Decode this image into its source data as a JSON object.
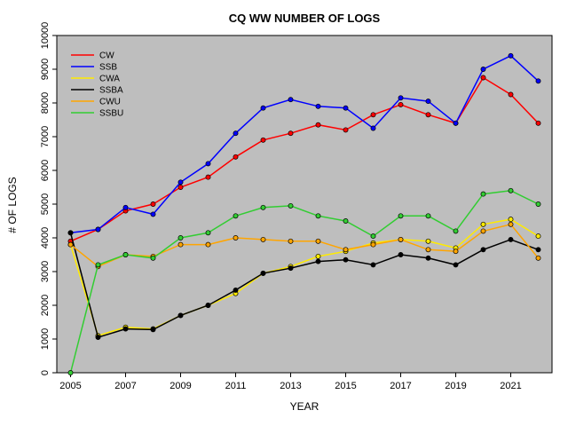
{
  "chart_data": {
    "type": "line",
    "title": "CQ WW NUMBER OF LOGS",
    "xlabel": "YEAR",
    "ylabel": "# OF LOGS",
    "xlim": [
      2004.5,
      2022.5
    ],
    "ylim": [
      0,
      10000
    ],
    "xticks": [
      2005,
      2007,
      2009,
      2011,
      2013,
      2015,
      2017,
      2019,
      2021
    ],
    "yticks": [
      0,
      1000,
      2000,
      3000,
      4000,
      5000,
      6000,
      7000,
      8000,
      9000,
      10000
    ],
    "grid": false,
    "legend_position": "top-left",
    "plot_bg": "#bebebe",
    "x": [
      2005,
      2006,
      2007,
      2008,
      2009,
      2010,
      2011,
      2012,
      2013,
      2014,
      2015,
      2016,
      2017,
      2018,
      2019,
      2020,
      2021,
      2022
    ],
    "series": [
      {
        "name": "CW",
        "color": "#ff0000",
        "values": [
          3900,
          4250,
          4800,
          5000,
          5500,
          5800,
          6400,
          6900,
          7100,
          7350,
          7200,
          7650,
          7950,
          7650,
          7400,
          8750,
          8250,
          7400
        ]
      },
      {
        "name": "SSB",
        "color": "#0000ff",
        "values": [
          4150,
          4250,
          4900,
          4700,
          5650,
          6200,
          7100,
          7850,
          8100,
          7900,
          7850,
          7250,
          8150,
          8050,
          7400,
          9000,
          9400,
          8650
        ]
      },
      {
        "name": "CWA",
        "color": "#ffeb00",
        "values": [
          3800,
          1100,
          1350,
          1300,
          1700,
          2000,
          2350,
          2950,
          3150,
          3450,
          3600,
          3850,
          3950,
          3900,
          3700,
          4400,
          4550,
          4050
        ]
      },
      {
        "name": "SSBA",
        "color": "#000000",
        "values": [
          4150,
          1050,
          1300,
          1280,
          1700,
          2000,
          2450,
          2950,
          3100,
          3300,
          3350,
          3200,
          3500,
          3400,
          3200,
          3650,
          3950,
          3650
        ]
      },
      {
        "name": "CWU",
        "color": "#ffa500",
        "values": [
          3800,
          3150,
          3500,
          3450,
          3800,
          3800,
          4000,
          3950,
          3900,
          3900,
          3650,
          3800,
          3950,
          3650,
          3600,
          4200,
          4400,
          3400
        ]
      },
      {
        "name": "SSBU",
        "color": "#32cd32",
        "values": [
          0,
          3200,
          3500,
          3400,
          4000,
          4150,
          4650,
          4900,
          4950,
          4650,
          4500,
          4050,
          4650,
          4650,
          4200,
          5300,
          5400,
          5000
        ]
      }
    ]
  }
}
